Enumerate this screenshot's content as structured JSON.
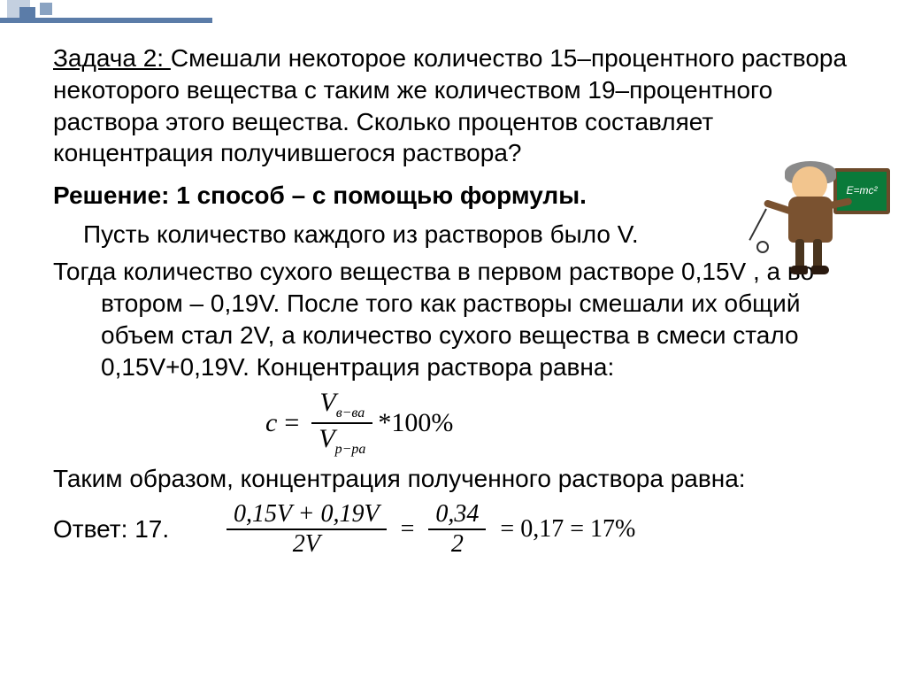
{
  "problem": {
    "title": "Задача 2: ",
    "text": "Смешали некоторое количество 15–процентного раствора некоторого вещества с таким же количеством 19–процентного раствора этого вещества. Сколько процентов составляет концентрация получившегося раствора?"
  },
  "solution": {
    "heading": "Решение: 1 способ – с помощью формулы.",
    "line1": "Пусть количество каждого из растворов было V.",
    "line2": "Тогда количество сухого вещества в первом растворе 0,15V , а во втором – 0,19V. После того как растворы смешали их общий объем стал 2V, а количество сухого вещества в смеси стало 0,15V+0,19V. Концентрация раствора равна:",
    "line3": "Таким образом, концентрация полученного раствора равна:",
    "answer_label": "Ответ: 17."
  },
  "formula1": {
    "lhs": "c",
    "eq": "=",
    "num_var": "V",
    "num_sub": "в−ва",
    "den_var": "V",
    "den_sub": "р−ра",
    "mult": "*100%"
  },
  "formula2": {
    "num1": "0,15V + 0,19V",
    "den1": "2V",
    "num2": "0,34",
    "den2": "2",
    "tail": "= 0,17 = 17%"
  },
  "chalkboard_text": "E=mc²",
  "colors": {
    "text": "#000000",
    "accent": "#5b7ca8",
    "board": "#0a7a3a",
    "board_frame": "#6b4a2a"
  }
}
